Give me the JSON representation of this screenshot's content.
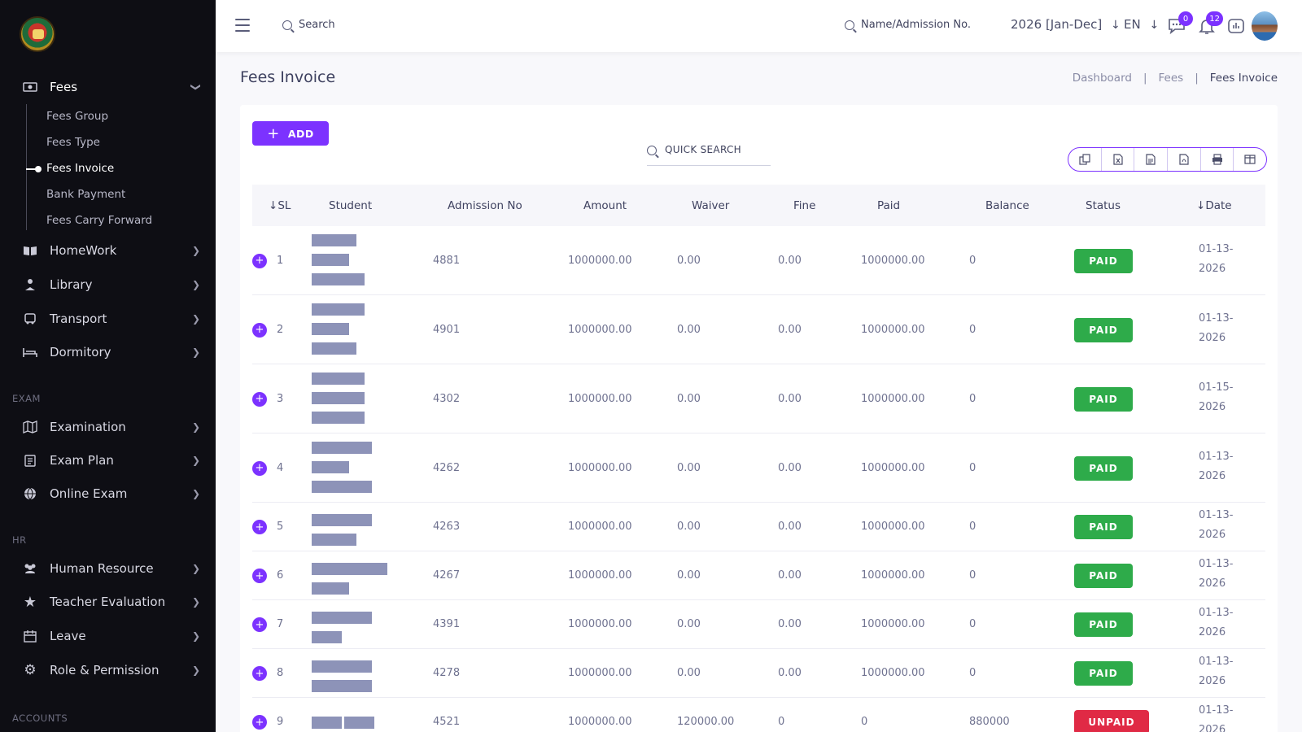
{
  "sidebar": {
    "fees_label": "Fees",
    "fees_sub": [
      "Fees Group",
      "Fees Type",
      "Fees Invoice",
      "Bank Payment",
      "Fees Carry Forward"
    ],
    "items_top": [
      "HomeWork",
      "Library",
      "Transport",
      "Dormitory"
    ],
    "section_exam": "EXAM",
    "items_exam": [
      "Examination",
      "Exam Plan",
      "Online Exam"
    ],
    "section_hr": "HR",
    "items_hr": [
      "Human Resource",
      "Teacher Evaluation",
      "Leave",
      "Role & Permission"
    ],
    "section_accounts": "ACCOUNTS"
  },
  "header": {
    "search_label": "Search",
    "name_search_label": "Name/Admission No.",
    "year": "2026 [Jan-Dec]",
    "lang": "EN",
    "chat_badge": "0",
    "notif_badge": "12"
  },
  "page": {
    "title": "Fees Invoice",
    "breadcrumb": [
      "Dashboard",
      "Fees",
      "Fees Invoice"
    ]
  },
  "toolbar": {
    "add_label": "ADD",
    "quick_search": "QUICK SEARCH"
  },
  "table": {
    "headers": [
      "SL",
      "Student",
      "Admission No",
      "Amount",
      "Waiver",
      "Fine",
      "Paid",
      "Balance",
      "Status",
      "Date"
    ],
    "rows": [
      {
        "sl": "1",
        "adm": "4881",
        "amount": "1000000.00",
        "waiver": "0.00",
        "fine": "0.00",
        "paid": "1000000.00",
        "balance": "0",
        "status": "PAID",
        "date1": "01-13-",
        "date2": "2026"
      },
      {
        "sl": "2",
        "adm": "4901",
        "amount": "1000000.00",
        "waiver": "0.00",
        "fine": "0.00",
        "paid": "1000000.00",
        "balance": "0",
        "status": "PAID",
        "date1": "01-13-",
        "date2": "2026"
      },
      {
        "sl": "3",
        "adm": "4302",
        "amount": "1000000.00",
        "waiver": "0.00",
        "fine": "0.00",
        "paid": "1000000.00",
        "balance": "0",
        "status": "PAID",
        "date1": "01-15-",
        "date2": "2026"
      },
      {
        "sl": "4",
        "adm": "4262",
        "amount": "1000000.00",
        "waiver": "0.00",
        "fine": "0.00",
        "paid": "1000000.00",
        "balance": "0",
        "status": "PAID",
        "date1": "01-13-",
        "date2": "2026"
      },
      {
        "sl": "5",
        "adm": "4263",
        "amount": "1000000.00",
        "waiver": "0.00",
        "fine": "0.00",
        "paid": "1000000.00",
        "balance": "0",
        "status": "PAID",
        "date1": "01-13-",
        "date2": "2026"
      },
      {
        "sl": "6",
        "adm": "4267",
        "amount": "1000000.00",
        "waiver": "0.00",
        "fine": "0.00",
        "paid": "1000000.00",
        "balance": "0",
        "status": "PAID",
        "date1": "01-13-",
        "date2": "2026"
      },
      {
        "sl": "7",
        "adm": "4391",
        "amount": "1000000.00",
        "waiver": "0.00",
        "fine": "0.00",
        "paid": "1000000.00",
        "balance": "0",
        "status": "PAID",
        "date1": "01-13-",
        "date2": "2026"
      },
      {
        "sl": "8",
        "adm": "4278",
        "amount": "1000000.00",
        "waiver": "0.00",
        "fine": "0.00",
        "paid": "1000000.00",
        "balance": "0",
        "status": "PAID",
        "date1": "01-13-",
        "date2": "2026"
      },
      {
        "sl": "9",
        "adm": "4521",
        "amount": "1000000.00",
        "waiver": "120000.00",
        "fine": "0",
        "paid": "0",
        "balance": "880000",
        "status": "UNPAID",
        "date1": "01-13-",
        "date2": "2026"
      }
    ]
  },
  "colors": {
    "accent": "#7c32ff",
    "paid": "#2eab4a",
    "unpaid": "#e02a45",
    "sidebar_bg": "#0e0e14"
  }
}
